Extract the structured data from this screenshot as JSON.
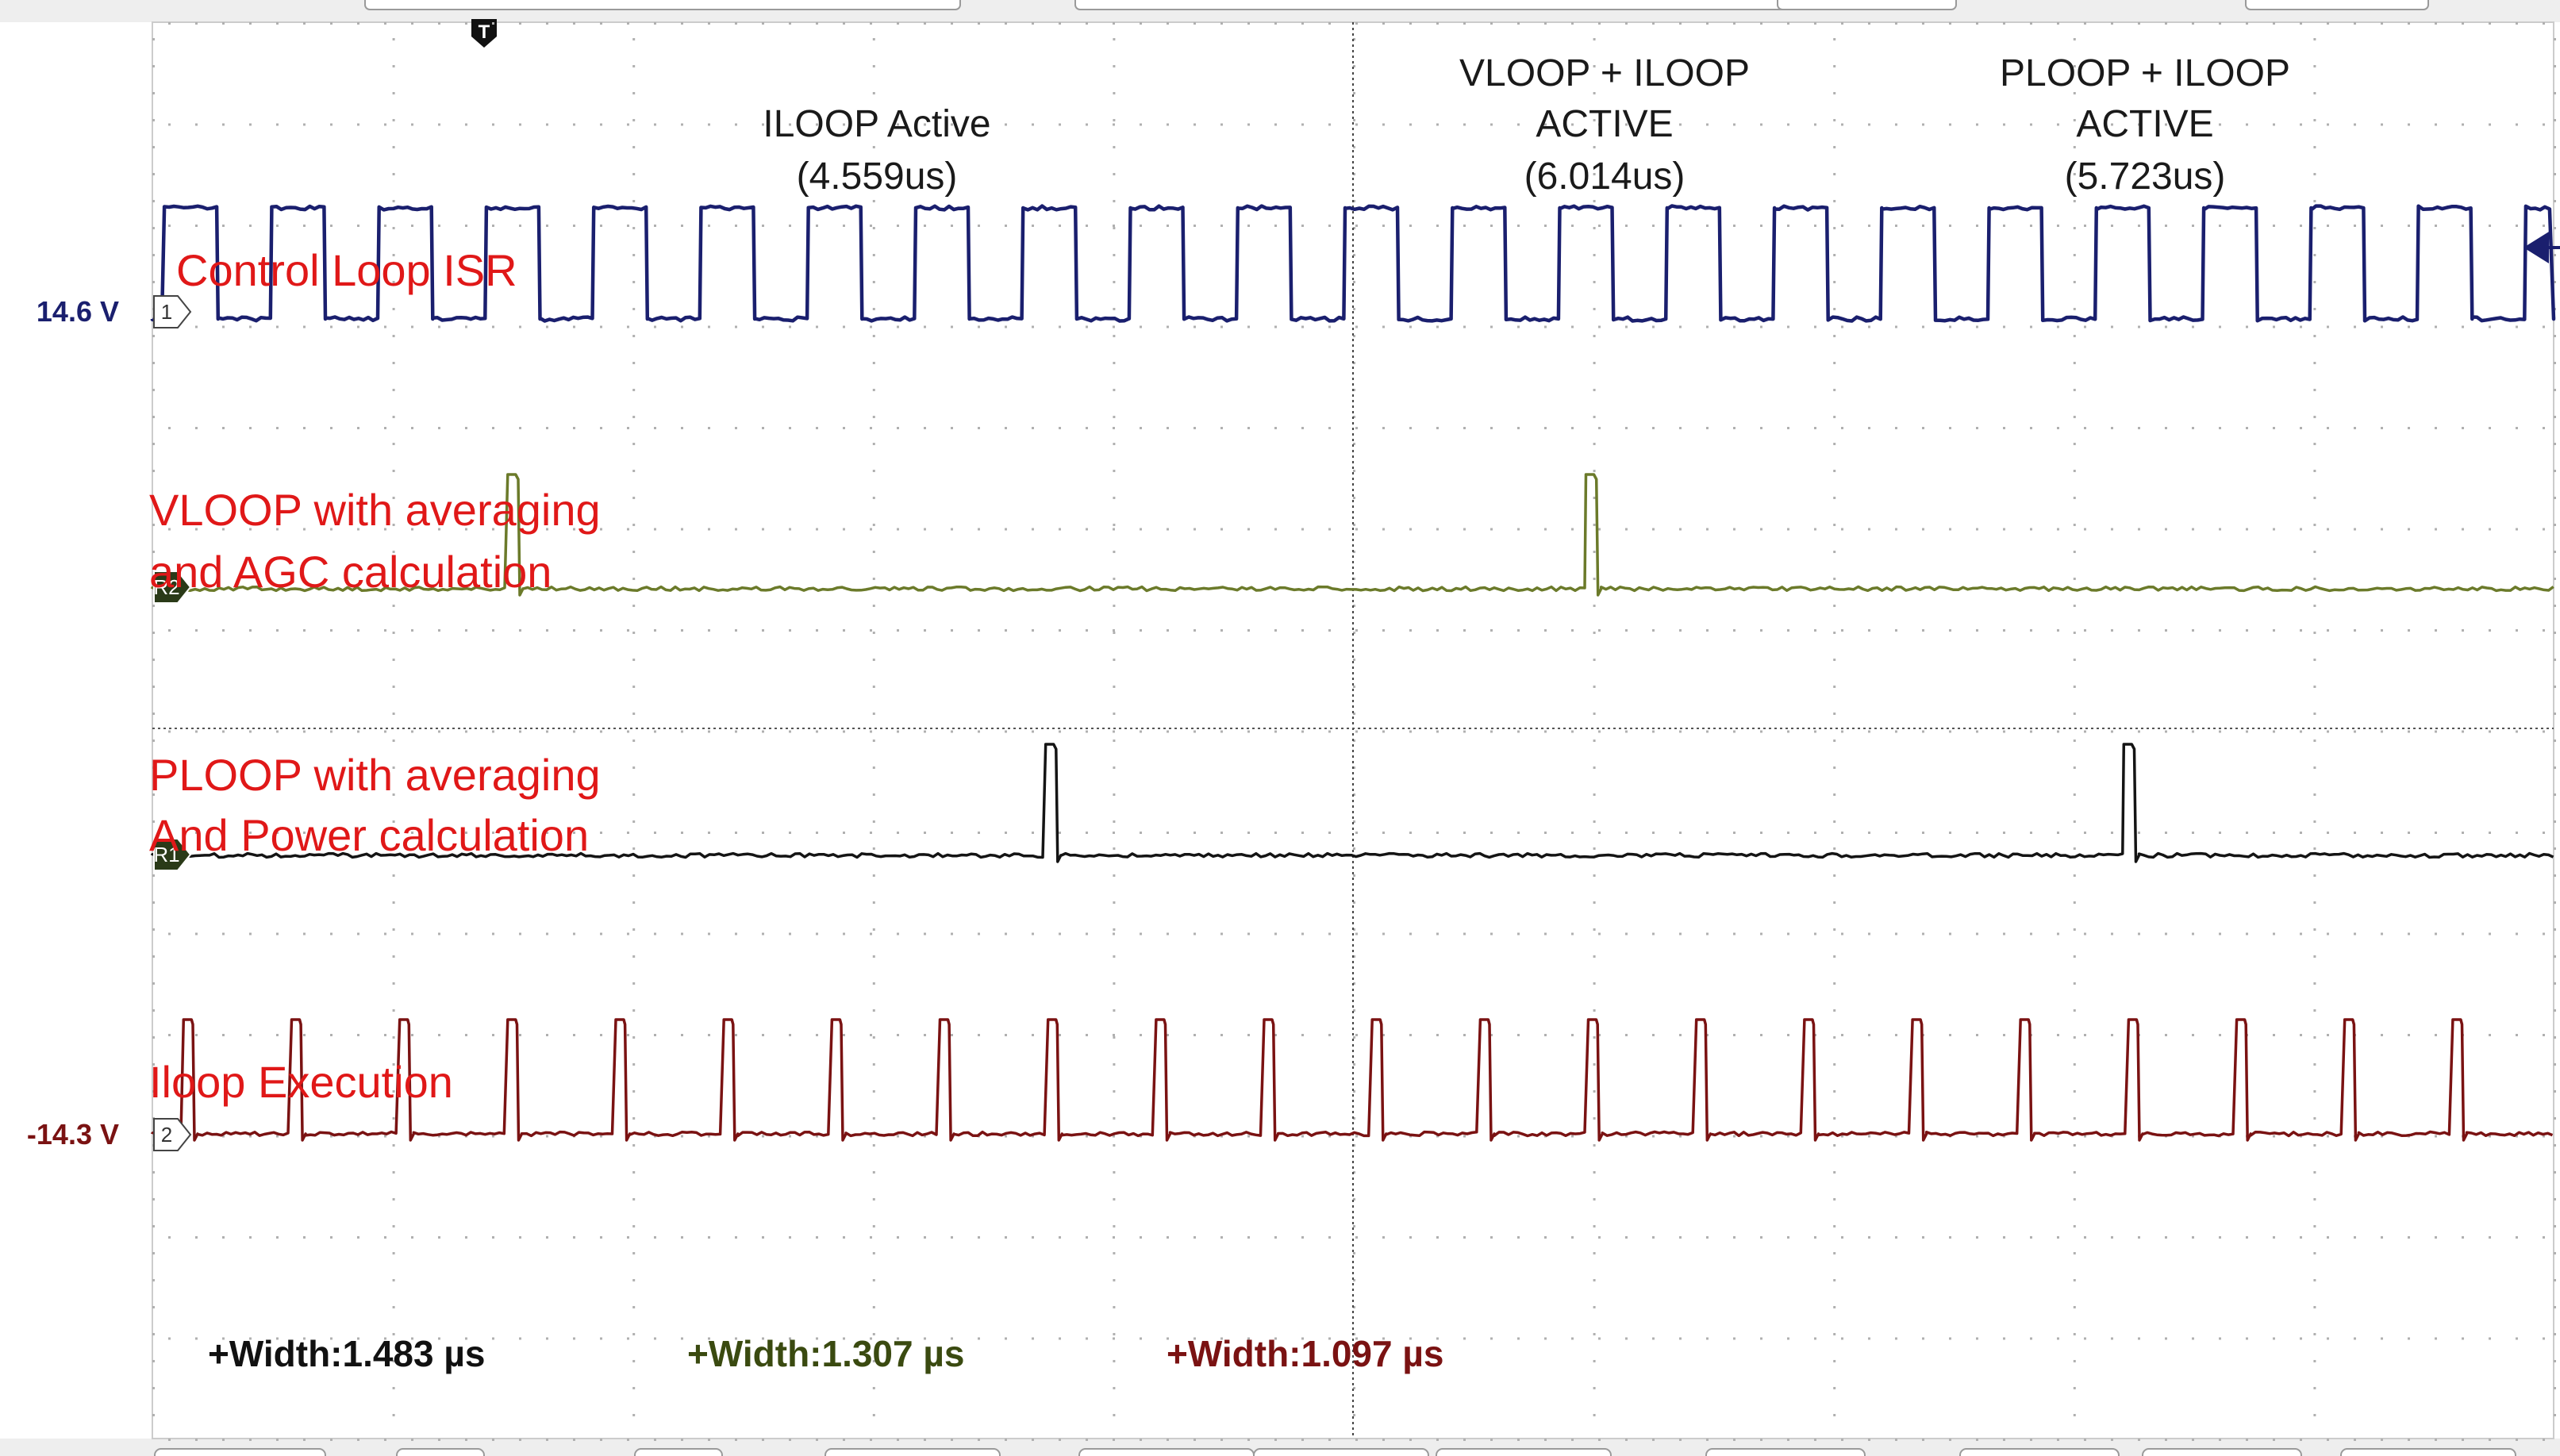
{
  "chart_data": {
    "type": "line",
    "title": "",
    "trigger_marker": "T",
    "time_divisions": 10,
    "channels": [
      {
        "id": "ch1",
        "tag": "1",
        "kind": "square",
        "level_readout": "14.6 V",
        "label": "Control Loop ISR",
        "color": "#1a1f6e",
        "period_div": 0.447,
        "high_fraction": 0.5,
        "start_div": 0.05
      },
      {
        "id": "r2",
        "tag": "R2",
        "kind": "pulses",
        "label_lines": [
          "VLOOP with averaging",
          "and AGC calculation"
        ],
        "color": "#6b7a2a",
        "pulse_starts_div": [
          1.48,
          5.97
        ],
        "pulse_width_div": 0.05
      },
      {
        "id": "r1",
        "tag": "R1",
        "kind": "pulses",
        "label_lines": [
          "PLOOP with averaging",
          "And Power calculation"
        ],
        "color": "#141414",
        "pulse_starts_div": [
          3.72,
          8.21
        ],
        "pulse_width_div": 0.05
      },
      {
        "id": "ch2",
        "tag": "2",
        "kind": "pulse_train",
        "level_readout": "-14.3 V",
        "label": "Iloop Execution",
        "color": "#7a1212",
        "pulse_starts_div": [
          0.13,
          0.58,
          1.03,
          1.48,
          1.93,
          2.38,
          2.83,
          3.28,
          3.73,
          4.18,
          4.63,
          5.08,
          5.53,
          5.98,
          6.43,
          6.88,
          7.33,
          7.78,
          8.23,
          8.68,
          9.13,
          9.58
        ],
        "pulse_width_div": 0.045
      }
    ],
    "annotations": [
      {
        "lines": [
          "ILOOP Active",
          "(4.559us)"
        ]
      },
      {
        "lines": [
          "VLOOP + ILOOP",
          "ACTIVE",
          "(6.014us)"
        ]
      },
      {
        "lines": [
          "PLOOP + ILOOP",
          "ACTIVE",
          "(5.723us)"
        ]
      }
    ],
    "measurements": [
      {
        "text": "+Width:1.483 µs",
        "color": "#111111"
      },
      {
        "text": "+Width:1.307 µs",
        "color": "#3a4a10"
      },
      {
        "text": "+Width:1.097 µs",
        "color": "#7a1212"
      }
    ]
  }
}
